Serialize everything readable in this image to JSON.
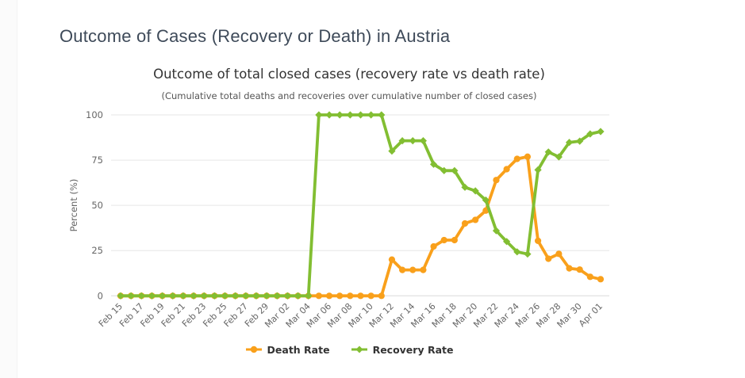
{
  "page": {
    "title": "Outcome of Cases (Recovery or Death) in Austria"
  },
  "chart_data": {
    "type": "line",
    "title": "Outcome of total closed cases (recovery rate vs death rate)",
    "subtitle": "(Cumulative total deaths and recoveries over cumulative number of closed cases)",
    "ylabel": "Percent (%)",
    "ylim": [
      0,
      100
    ],
    "yticks": [
      0,
      25,
      50,
      75,
      100
    ],
    "grid": "horizontal",
    "legend_position": "bottom",
    "x": [
      "Feb 15",
      "Feb 16",
      "Feb 17",
      "Feb 18",
      "Feb 19",
      "Feb 20",
      "Feb 21",
      "Feb 22",
      "Feb 23",
      "Feb 24",
      "Feb 25",
      "Feb 26",
      "Feb 27",
      "Feb 28",
      "Feb 29",
      "Mar 01",
      "Mar 02",
      "Mar 03",
      "Mar 04",
      "Mar 05",
      "Mar 06",
      "Mar 07",
      "Mar 08",
      "Mar 09",
      "Mar 10",
      "Mar 11",
      "Mar 12",
      "Mar 13",
      "Mar 14",
      "Mar 15",
      "Mar 16",
      "Mar 17",
      "Mar 18",
      "Mar 19",
      "Mar 20",
      "Mar 21",
      "Mar 22",
      "Mar 23",
      "Mar 24",
      "Mar 25",
      "Mar 26",
      "Mar 27",
      "Mar 28",
      "Mar 29",
      "Mar 30",
      "Mar 31",
      "Apr 01"
    ],
    "x_tick_labels": [
      "Feb 15",
      "Feb 17",
      "Feb 19",
      "Feb 21",
      "Feb 23",
      "Feb 25",
      "Feb 27",
      "Feb 29",
      "Mar 02",
      "Mar 04",
      "Mar 06",
      "Mar 08",
      "Mar 10",
      "Mar 12",
      "Mar 14",
      "Mar 16",
      "Mar 18",
      "Mar 20",
      "Mar 22",
      "Mar 24",
      "Mar 26",
      "Mar 28",
      "Mar 30",
      "Apr 01"
    ],
    "series": [
      {
        "name": "Death Rate",
        "color": "#F9A01B",
        "marker": "circle",
        "values": [
          0,
          0,
          0,
          0,
          0,
          0,
          0,
          0,
          0,
          0,
          0,
          0,
          0,
          0,
          0,
          0,
          0,
          0,
          0,
          0,
          0,
          0,
          0,
          0,
          0,
          0,
          20,
          14.3,
          14.3,
          14.3,
          27.3,
          30.8,
          30.8,
          40,
          42,
          47.1,
          64,
          70,
          75.7,
          76.9,
          30.4,
          20.5,
          23.2,
          15.2,
          14.5,
          10.5,
          9.2
        ]
      },
      {
        "name": "Recovery Rate",
        "color": "#82BE32",
        "marker": "diamond",
        "values": [
          0,
          0,
          0,
          0,
          0,
          0,
          0,
          0,
          0,
          0,
          0,
          0,
          0,
          0,
          0,
          0,
          0,
          0,
          0,
          100,
          100,
          100,
          100,
          100,
          100,
          100,
          80,
          85.7,
          85.7,
          85.7,
          72.7,
          69.2,
          69.2,
          60,
          58,
          52.9,
          36,
          30,
          24.3,
          23.1,
          69.6,
          79.5,
          76.8,
          84.8,
          85.5,
          89.5,
          90.8
        ]
      }
    ]
  }
}
